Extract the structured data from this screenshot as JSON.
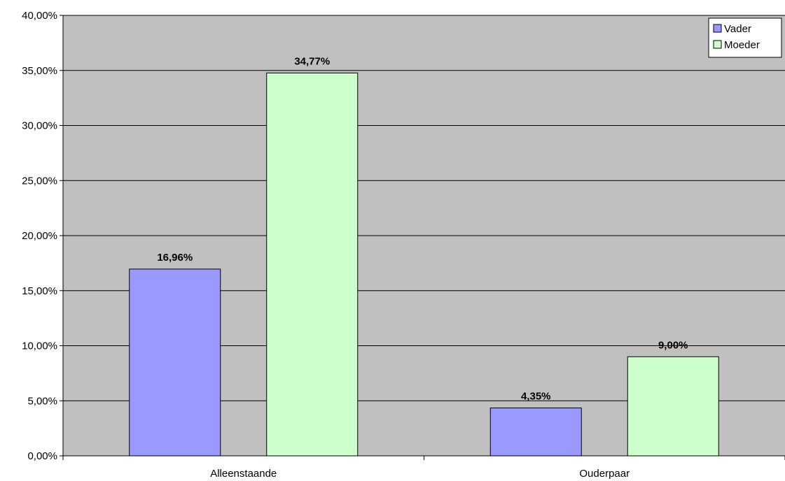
{
  "chart_data": {
    "type": "bar",
    "title": "",
    "xlabel": "",
    "ylabel": "",
    "categories": [
      "Alleenstaande",
      "Ouderpaar"
    ],
    "series": [
      {
        "name": "Vader",
        "values": [
          16.96,
          4.35
        ],
        "labels": [
          "16,96%",
          "4,35%"
        ],
        "color": "#9999ff"
      },
      {
        "name": "Moeder",
        "values": [
          34.77,
          9.0
        ],
        "labels": [
          "34,77%",
          "9,00%"
        ],
        "color": "#ccffcc"
      }
    ],
    "ylim": [
      0,
      40
    ],
    "y_ticks": [
      0,
      5,
      10,
      15,
      20,
      25,
      30,
      35,
      40
    ],
    "y_tick_labels": [
      "0,00%",
      "5,00%",
      "10,00%",
      "15,00%",
      "20,00%",
      "25,00%",
      "30,00%",
      "35,00%",
      "40,00%"
    ],
    "grid": true,
    "legend_position": "top-right",
    "plot_background": "#c0c0c0"
  }
}
